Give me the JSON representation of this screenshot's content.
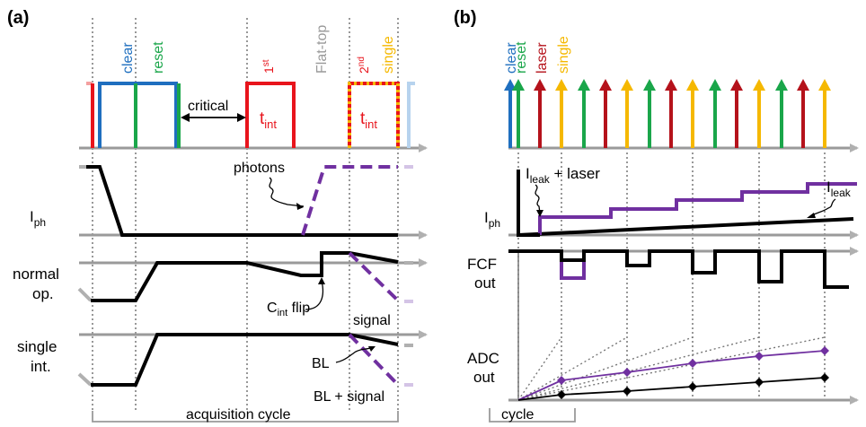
{
  "panel_a": {
    "label": "(a)",
    "events": {
      "clear": "clear",
      "reset": "reset",
      "critical": "critical",
      "first": "1",
      "first_sup": "st",
      "second": "2",
      "second_sup": "nd",
      "flat_top": "Flat-top",
      "single": "single",
      "tint_main": "t",
      "tint_sub": "int"
    },
    "rows": {
      "photons": "photons",
      "iph_main": "I",
      "iph_sub": "ph",
      "normal_1": "normal",
      "normal_2": "op.",
      "cint_main": "C",
      "cint_sub": "int",
      "cint_rest": " flip",
      "signal": "signal",
      "single_1": "single",
      "single_2": "int.",
      "bl": "BL",
      "bl_signal": "BL + signal"
    },
    "acquisition_cycle": "acquisition cycle"
  },
  "panel_b": {
    "label": "(b)",
    "events": {
      "clear": "clear",
      "reset": "reset",
      "laser": "laser",
      "single": "single"
    },
    "rows": {
      "ileak_main": "I",
      "ileak_sub": "leak",
      "ileak_plus": " + laser",
      "ileak2_main": "I",
      "ileak2_sub": "leak",
      "iph_main": "I",
      "iph_sub": "ph",
      "fcf_1": "FCF",
      "fcf_2": "out",
      "adc_1": "ADC",
      "adc_2": "out"
    },
    "cycle": "cycle"
  },
  "colors": {
    "clear": "#1f6fbf",
    "reset": "#1aa64a",
    "laser": "#b5121b",
    "single": "#f5b800",
    "int": "#e8141c",
    "purple": "#7030a0",
    "axis": "#9a9a9a"
  }
}
